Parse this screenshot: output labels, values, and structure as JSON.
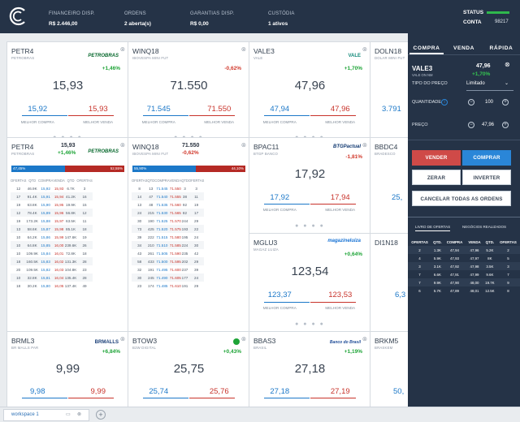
{
  "topbar": {
    "financeiro": {
      "label": "FINANCEIRO DISP.",
      "value": "R$ 2.446,00"
    },
    "ordens": {
      "label": "ORDENS",
      "value": "2 aberta(s)"
    },
    "garantias": {
      "label": "GARANTIAS DISP.",
      "value": "R$ 0,00"
    },
    "custodia": {
      "label": "CUSTÓDIA",
      "value": "1 ativos"
    },
    "status": {
      "label": "STATUS",
      "conta_label": "CONTA",
      "conta_value": "98217",
      "color": "#2fb84d"
    }
  },
  "cards": {
    "petr4_r1": {
      "sym": "PETR4",
      "company": "PETROBRAS",
      "brand": "PETROBRAS",
      "change": "+1,46%",
      "last": "15,93",
      "bid": "15,92",
      "ask": "15,93",
      "bid_label": "MELHOR COMPRA",
      "ask_label": "MELHOR VENDA"
    },
    "winq18_r1": {
      "sym": "WINQ18",
      "company": "IBOVESPA MINI FUT",
      "change": "-0,62%",
      "last": "71.550",
      "bid": "71.545",
      "ask": "71.550",
      "bid_label": "MELHOR COMPRA",
      "ask_label": "MELHOR VENDA"
    },
    "vale3_r1": {
      "sym": "VALE3",
      "company": "VALE",
      "brand": "VALE",
      "change": "+1,70%",
      "last": "47,96",
      "bid": "47,94",
      "ask": "47,96",
      "bid_label": "MELHOR COMPRA",
      "ask_label": "MELHOR VENDA"
    },
    "doln18_r1": {
      "sym": "DOLN18",
      "company": "DOLAR MINI FUT",
      "bid": "3.791"
    },
    "petr4_r2": {
      "sym": "PETR4",
      "company": "PETROBRAS",
      "brand": "PETROBRAS",
      "price": "15,93",
      "change": "+1,46%",
      "buy_pct": "47,45%",
      "sell_pct": "52,55%"
    },
    "winq18_r2": {
      "sym": "WINQ18",
      "company": "IBOVESPA MINI FUT",
      "price": "71.550",
      "change": "-0,62%",
      "buy_pct": "55,90%",
      "sell_pct": "44,10%"
    },
    "bpac11": {
      "sym": "BPAC11",
      "company": "BTGP BANCO",
      "brand": "BTGPactual",
      "change": "-1,81%",
      "last": "17,92",
      "bid": "17,92",
      "ask": "17,94",
      "bid_label": "MELHOR COMPRA",
      "ask_label": "MELHOR VENDA"
    },
    "bbdc4": {
      "sym": "BBDC4",
      "company": "BRADESCO",
      "bid": "25,"
    },
    "mglu3": {
      "sym": "MGLU3",
      "company": "MAGAZ LUIZA",
      "brand": "magazineluiza",
      "change": "+0,64%",
      "last": "123,54",
      "bid": "123,37",
      "ask": "123,53",
      "bid_label": "MELHOR COMPRA",
      "ask_label": "MELHOR VENDA"
    },
    "di1n18": {
      "sym": "DI1N18",
      "company": "",
      "bid": "6,3"
    },
    "brml3": {
      "sym": "BRML3",
      "company": "BR MALLS PAR",
      "brand": "BRMALLS",
      "change": "+6,84%",
      "last": "9,99",
      "bid": "9,98",
      "ask": "9,99"
    },
    "btow3": {
      "sym": "BTOW3",
      "company": "B2W DIGITAL",
      "change": "+0,43%",
      "last": "25,75",
      "bid": "25,74",
      "ask": "25,76"
    },
    "bbas3": {
      "sym": "BBAS3",
      "company": "BRASIL",
      "brand": "Banco do Brasil",
      "change": "+1,19%",
      "last": "27,18",
      "bid": "27,18",
      "ask": "27,19"
    },
    "brkm5": {
      "sym": "BRKM5",
      "company": "BRASKEM",
      "bid": "50,"
    }
  },
  "book_headers": [
    "OFERTAS",
    "QTD",
    "COMPRA",
    "VENDA",
    "QTD",
    "OFERTAS"
  ],
  "petr4_book": [
    [
      "12",
      "46.9K",
      "15,92",
      "15,93",
      "6.7K",
      "3"
    ],
    [
      "17",
      "91.4K",
      "15,91",
      "15,94",
      "41.2K",
      "16"
    ],
    [
      "19",
      "63.8K",
      "15,90",
      "15,95",
      "19.9K",
      "15"
    ],
    [
      "12",
      "78.4K",
      "15,89",
      "15,96",
      "56.8K",
      "12"
    ],
    [
      "19",
      "173.2K",
      "15,88",
      "15,97",
      "63.5K",
      "11"
    ],
    [
      "13",
      "58.6K",
      "15,87",
      "15,98",
      "85.1K",
      "18"
    ],
    [
      "10",
      "64.2K",
      "15,86",
      "15,99",
      "147.6K",
      "19"
    ],
    [
      "10",
      "64.8K",
      "15,85",
      "16,00",
      "239.6K",
      "26"
    ],
    [
      "10",
      "109.9K",
      "15,84",
      "16,01",
      "72.8K",
      "18"
    ],
    [
      "18",
      "160.5K",
      "15,83",
      "16,02",
      "131.3K",
      "28"
    ],
    [
      "20",
      "109.5K",
      "15,82",
      "16,03",
      "104.8K",
      "23"
    ],
    [
      "10",
      "32.8K",
      "15,81",
      "16,04",
      "135.4K",
      "28"
    ],
    [
      "18",
      "30.2K",
      "15,80",
      "16,05",
      "137.4K",
      "49"
    ]
  ],
  "winq_book": [
    [
      "8",
      "13",
      "71.545",
      "71.550",
      "3",
      "3"
    ],
    [
      "14",
      "47",
      "71.540",
      "71.555",
      "38",
      "11"
    ],
    [
      "13",
      "48",
      "71.535",
      "71.560",
      "92",
      "19"
    ],
    [
      "24",
      "215",
      "71.530",
      "71.565",
      "82",
      "17"
    ],
    [
      "30",
      "190",
      "71.525",
      "71.570",
      "244",
      "29"
    ],
    [
      "73",
      "425",
      "71.520",
      "71.575",
      "193",
      "22"
    ],
    [
      "39",
      "222",
      "71.515",
      "71.580",
      "195",
      "24"
    ],
    [
      "34",
      "210",
      "71.510",
      "71.585",
      "224",
      "30"
    ],
    [
      "43",
      "261",
      "71.505",
      "71.590",
      "235",
      "42"
    ],
    [
      "58",
      "433",
      "71.500",
      "71.595",
      "202",
      "29"
    ],
    [
      "32",
      "191",
      "71.495",
      "71.600",
      "237",
      "39"
    ],
    [
      "30",
      "245",
      "71.490",
      "71.605",
      "177",
      "24"
    ],
    [
      "23",
      "174",
      "71.485",
      "71.610",
      "191",
      "29"
    ]
  ],
  "panel": {
    "tabs": [
      "COMPRA",
      "VENDA",
      "RÁPIDA"
    ],
    "symbol": "VALE3",
    "company": "VALE ON NM",
    "price": "47,96",
    "change": "+1,70%",
    "order_type_label": "TIPO DO PREÇO",
    "order_type_value": "Limitado",
    "qty_label": "QUANTIDADE",
    "qty_value": "100",
    "price_label": "PREÇO",
    "price_value": "47,96",
    "sell_btn": "VENDER",
    "buy_btn": "COMPRAR",
    "zerar_btn": "ZERAR",
    "inverter_btn": "INVERTER",
    "cancel_btn": "CANCELAR TODAS AS ORDENS",
    "book_tab": "LIVRO DE OFERTAS",
    "trades_tab": "NEGÓCIOS REALIZADOS",
    "book_headers": [
      "OFERTAS",
      "QTD.",
      "COMPRA",
      "VENDA",
      "QTD.",
      "OFERTAS"
    ],
    "book_rows": [
      [
        "2",
        "1.3K",
        "47,94",
        "47,96",
        "5.2K",
        "2"
      ],
      [
        "4",
        "5.9K",
        "47,93",
        "47,97",
        "8K",
        "5"
      ],
      [
        "3",
        "3.1K",
        "47,92",
        "47,98",
        "3.5K",
        "3"
      ],
      [
        "7",
        "6.6K",
        "47,91",
        "47,99",
        "9.6K",
        "7"
      ],
      [
        "7",
        "9.9K",
        "47,90",
        "48,00",
        "19.7K",
        "9"
      ],
      [
        "6",
        "5.7K",
        "47,89",
        "48,01",
        "12.5K",
        "8"
      ]
    ]
  },
  "bottom": {
    "workspace": "workspace 1"
  },
  "colors": {
    "buy": "#1c78c8",
    "sell": "#c8332b",
    "up": "#1ea437",
    "down": "#d1392c",
    "panel_bg": "#253347",
    "sell_btn": "#cf4a48",
    "buy_btn": "#2a86d8"
  }
}
